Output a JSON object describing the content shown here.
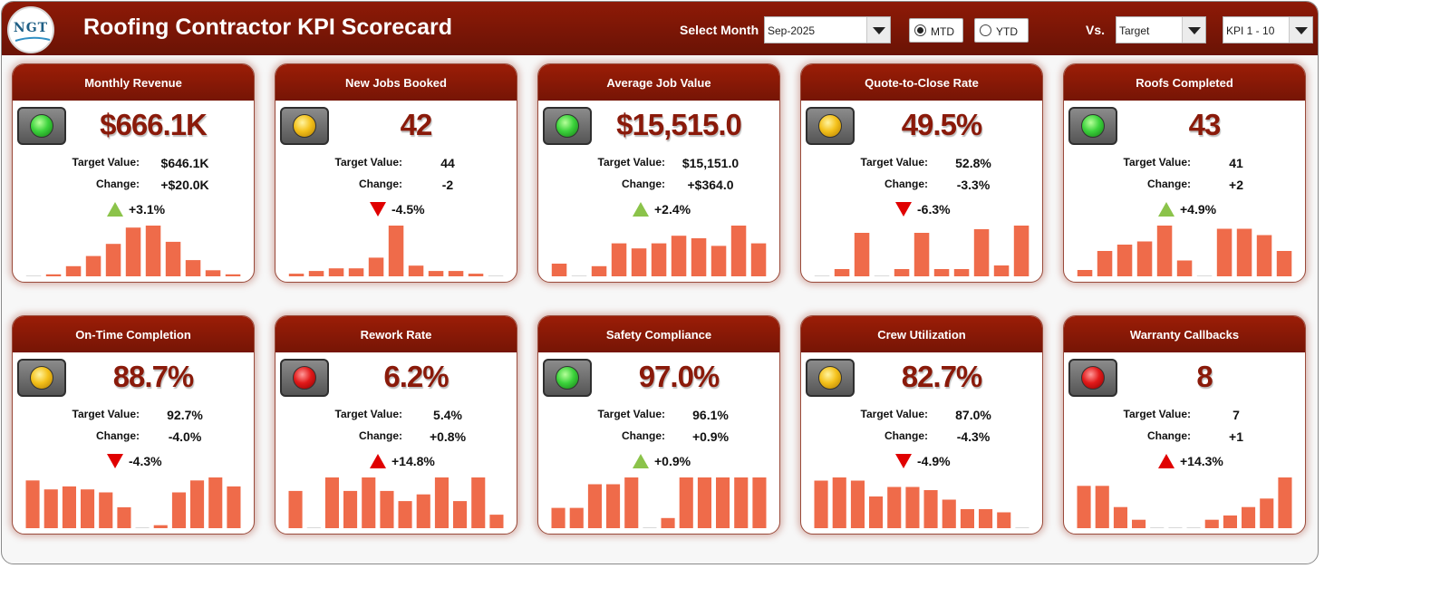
{
  "header": {
    "logo_text": "NGT",
    "title": "Roofing Contractor KPI Scorecard",
    "select_month_label": "Select Month",
    "month_value": "Sep-2025",
    "mtd_label": "MTD",
    "ytd_label": "YTD",
    "mtd_selected": true,
    "vs_label": "Vs.",
    "vs_value": "Target",
    "kpi_range_value": "KPI 1 - 10"
  },
  "labels": {
    "target": "Target Value:",
    "change": "Change:"
  },
  "colors": {
    "header": "#7a1505",
    "bar": "#ef6b4a",
    "up_good": "#8bc34a",
    "down_bad": "#e00000"
  },
  "kpis": [
    {
      "title": "Monthly Revenue",
      "value": "$666.1K",
      "target": "$646.1K",
      "change": "+$20.0K",
      "pct": "+3.1%",
      "status": "green",
      "arrow": "up",
      "bars": [
        0,
        1,
        5,
        10,
        16,
        24,
        25,
        17,
        8,
        3,
        1
      ]
    },
    {
      "title": "New Jobs Booked",
      "value": "42",
      "target": "44",
      "change": "-2",
      "pct": "-4.5%",
      "status": "yellow",
      "arrow": "down",
      "bars": [
        1,
        2,
        3,
        3,
        7,
        19,
        4,
        2,
        2,
        1,
        0
      ]
    },
    {
      "title": "Average Job Value",
      "value": "$15,515.0",
      "target": "$15,151.0",
      "change": "+$364.0",
      "pct": "+2.4%",
      "status": "green",
      "arrow": "up",
      "bars": [
        5,
        0,
        4,
        13,
        11,
        13,
        16,
        15,
        12,
        20,
        13
      ]
    },
    {
      "title": "Quote-to-Close Rate",
      "value": "49.5%",
      "target": "52.8%",
      "change": "-3.3%",
      "pct": "-6.3%",
      "status": "yellow",
      "arrow": "down",
      "bars": [
        0,
        2,
        12,
        0,
        2,
        12,
        2,
        2,
        13,
        3,
        14
      ]
    },
    {
      "title": "Roofs Completed",
      "value": "43",
      "target": "41",
      "change": "+2",
      "pct": "+4.9%",
      "status": "green",
      "arrow": "up",
      "bars": [
        2,
        8,
        10,
        11,
        16,
        5,
        0,
        15,
        15,
        13,
        8
      ]
    },
    {
      "title": "On-Time Completion",
      "value": "88.7%",
      "target": "92.7%",
      "change": "-4.0%",
      "pct": "-4.3%",
      "status": "yellow",
      "arrow": "down",
      "bars": [
        16,
        13,
        14,
        13,
        12,
        7,
        0,
        1,
        12,
        16,
        17,
        14
      ]
    },
    {
      "title": "Rework Rate",
      "value": "6.2%",
      "target": "5.4%",
      "change": "+0.8%",
      "pct": "+14.8%",
      "status": "red",
      "arrow": "upred",
      "bars": [
        11,
        0,
        15,
        11,
        15,
        11,
        8,
        10,
        15,
        8,
        15,
        4
      ]
    },
    {
      "title": "Safety Compliance",
      "value": "97.0%",
      "target": "96.1%",
      "change": "+0.9%",
      "pct": "+0.9%",
      "status": "green",
      "arrow": "up",
      "bars": [
        6,
        6,
        13,
        13,
        15,
        0,
        3,
        15,
        15,
        15,
        15,
        15
      ]
    },
    {
      "title": "Crew Utilization",
      "value": "82.7%",
      "target": "87.0%",
      "change": "-4.3%",
      "pct": "-4.9%",
      "status": "yellow",
      "arrow": "down",
      "bars": [
        15,
        16,
        15,
        10,
        13,
        13,
        12,
        9,
        6,
        6,
        5,
        0
      ]
    },
    {
      "title": "Warranty Callbacks",
      "value": "8",
      "target": "7",
      "change": "+1",
      "pct": "+14.3%",
      "status": "red",
      "arrow": "upred",
      "bars": [
        10,
        10,
        5,
        2,
        0,
        0,
        0,
        2,
        3,
        5,
        7,
        12
      ]
    }
  ]
}
